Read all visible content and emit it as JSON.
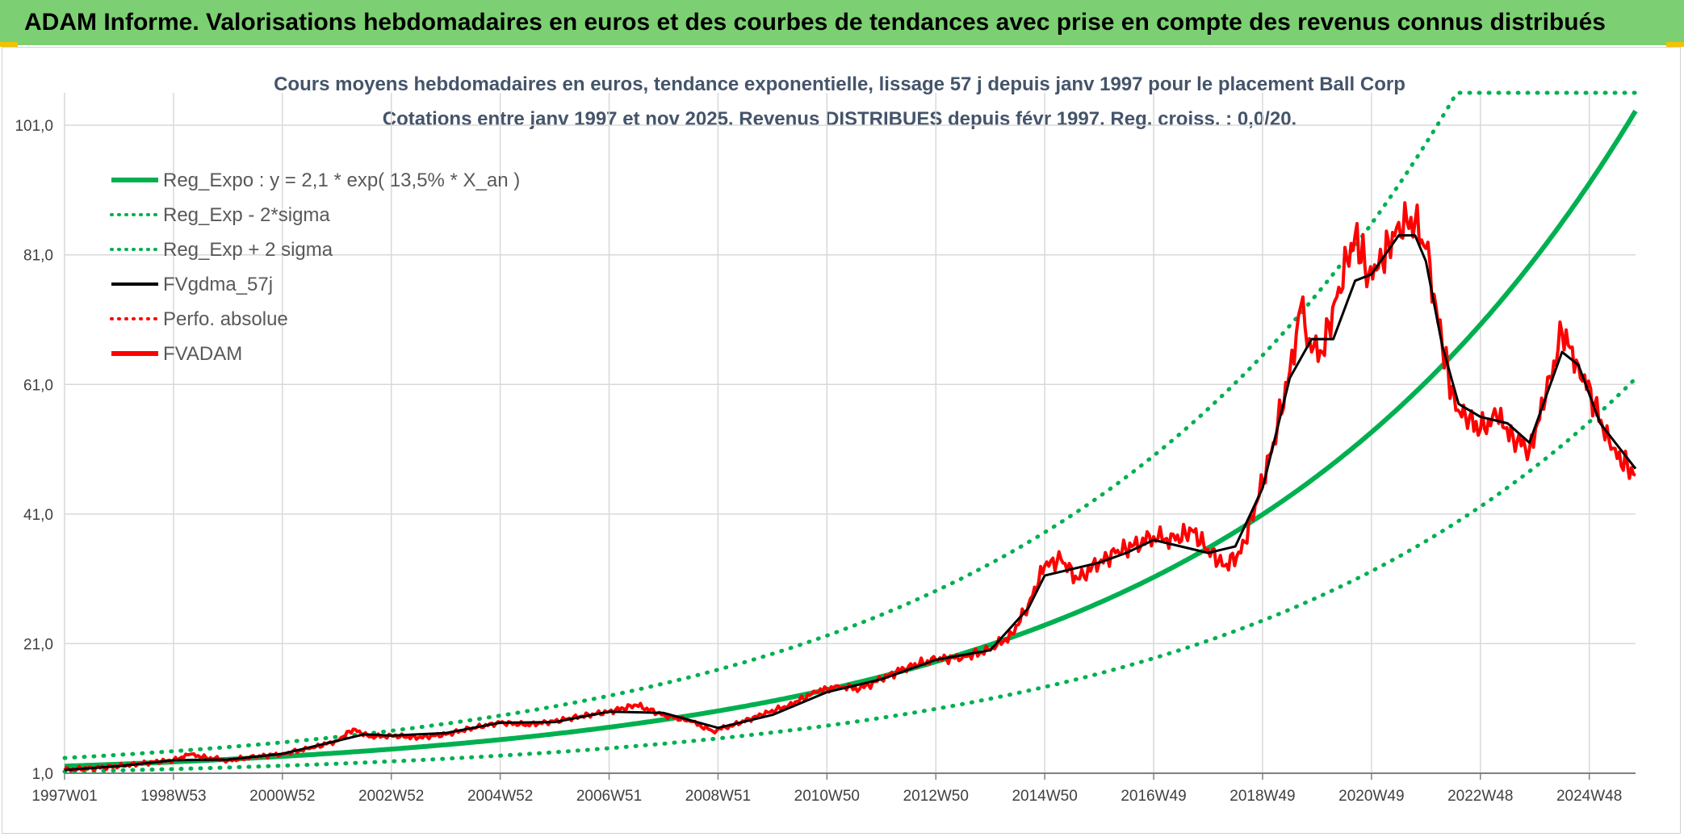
{
  "header": {
    "title": "ADAM Informe. Valorisations hebdomadaires en euros et des courbes de tendances avec prise en compte des revenus connus distribués"
  },
  "colors": {
    "banner": "#7ccf72",
    "trend": "#00b050",
    "fv": "#000000",
    "adam": "#ff0000",
    "perf": "#ff0000",
    "grid": "#d9d9d9"
  },
  "chart_data": {
    "type": "line",
    "title": "Cours moyens hebdomadaires en euros, tendance exponentielle, lissage 57 j depuis janv 1997 pour le placement Ball Corp",
    "subtitle": "Cotations entre janv 1997 et nov 2025. Revenus DISTRIBUES depuis févr 1997. Reg. croiss. : 0,0/20.",
    "xlabel": "",
    "ylabel": "",
    "xlim": [
      1997.0,
      2025.85
    ],
    "ylim": [
      1.0,
      106.0
    ],
    "yticks": [
      "1,0",
      "21,0",
      "41,0",
      "61,0",
      "81,0",
      "101,0"
    ],
    "ytick_values": [
      1,
      21,
      41,
      61,
      81,
      101
    ],
    "xtick_labels": [
      "1997W01",
      "1998W53",
      "2000W52",
      "2002W52",
      "2004W52",
      "2006W51",
      "2008W51",
      "2010W50",
      "2012W50",
      "2014W50",
      "2016W49",
      "2018W49",
      "2020W49",
      "2022W48",
      "2024W48"
    ],
    "xtick_values": [
      1997.0,
      1999.0,
      2001.0,
      2003.0,
      2005.0,
      2007.0,
      2009.0,
      2011.0,
      2013.0,
      2015.0,
      2017.0,
      2019.0,
      2021.0,
      2023.0,
      2025.0
    ],
    "grid": true,
    "legend_position": "top-left",
    "legend": [
      {
        "name": "Reg_Expo : y = 2,1 * exp( 13,5% *  X_an )",
        "style": "solid-thick",
        "color": "#00b050"
      },
      {
        "name": "Reg_Exp - 2*sigma",
        "style": "dotted",
        "color": "#00b050"
      },
      {
        "name": "Reg_Exp + 2 sigma",
        "style": "dotted",
        "color": "#00b050"
      },
      {
        "name": "FVgdma_57j",
        "style": "solid",
        "color": "#000000"
      },
      {
        "name": "Perfo. absolue",
        "style": "dotted",
        "color": "#ff0000"
      },
      {
        "name": "FVADAM",
        "style": "solid-thick",
        "color": "#ff0000"
      }
    ],
    "regression": {
      "a": 2.1,
      "rate": 0.135,
      "minus_2sigma_factor": 0.6,
      "plus_2sigma_factor": 1.6,
      "upper_cap": 106.0
    },
    "series": [
      {
        "name": "FVADAM",
        "x": [
          1997.0,
          1997.5,
          1998.0,
          1998.5,
          1999.0,
          1999.3,
          1999.6,
          2000.0,
          2000.5,
          2001.0,
          2001.5,
          2002.0,
          2002.3,
          2002.6,
          2003.0,
          2003.5,
          2004.0,
          2004.5,
          2005.0,
          2005.5,
          2006.0,
          2006.5,
          2007.0,
          2007.5,
          2008.0,
          2008.5,
          2008.9,
          2009.3,
          2009.8,
          2010.3,
          2010.8,
          2011.2,
          2011.6,
          2012.0,
          2012.5,
          2013.0,
          2013.5,
          2014.0,
          2014.4,
          2014.7,
          2015.0,
          2015.3,
          2015.6,
          2016.0,
          2016.3,
          2016.6,
          2017.0,
          2017.4,
          2017.7,
          2018.0,
          2018.3,
          2018.6,
          2018.9,
          2019.2,
          2019.5,
          2019.7,
          2019.9,
          2020.1,
          2020.4,
          2020.7,
          2020.95,
          2021.2,
          2021.5,
          2021.8,
          2022.0,
          2022.3,
          2022.55,
          2022.8,
          2023.0,
          2023.3,
          2023.6,
          2023.9,
          2024.2,
          2024.5,
          2024.8,
          2025.1,
          2025.4,
          2025.85
        ],
        "values": [
          1.5,
          1.8,
          2.1,
          2.6,
          3.0,
          3.9,
          3.4,
          3.0,
          3.5,
          4.0,
          4.8,
          6.0,
          7.8,
          6.6,
          6.8,
          6.5,
          7.0,
          8.0,
          8.8,
          8.5,
          9.0,
          9.8,
          10.5,
          11.5,
          10.0,
          9.0,
          7.5,
          8.5,
          10.0,
          11.5,
          13.5,
          14.5,
          14.0,
          15.5,
          17.5,
          18.5,
          19.0,
          20.0,
          22.5,
          27.0,
          33.0,
          34.0,
          31.0,
          33.5,
          35.0,
          36.0,
          37.5,
          37.0,
          38.5,
          35.5,
          33.0,
          35.0,
          43.0,
          52.0,
          63.0,
          73.0,
          66.0,
          66.0,
          76.0,
          84.0,
          78.0,
          80.0,
          86.0,
          86.0,
          82.0,
          67.0,
          57.0,
          56.0,
          54.0,
          56.0,
          53.0,
          51.0,
          59.0,
          69.0,
          64.0,
          58.0,
          51.0,
          47.0
        ]
      },
      {
        "name": "FVgdma_57j",
        "x": [
          1997.0,
          1998.0,
          1999.0,
          2000.0,
          2001.0,
          2002.0,
          2002.5,
          2003.0,
          2004.0,
          2005.0,
          2006.0,
          2007.0,
          2008.0,
          2009.0,
          2010.0,
          2011.0,
          2012.0,
          2013.0,
          2014.0,
          2014.7,
          2015.0,
          2015.5,
          2016.0,
          2016.5,
          2017.0,
          2017.5,
          2018.0,
          2018.5,
          2019.0,
          2019.5,
          2019.9,
          2020.3,
          2020.7,
          2021.0,
          2021.5,
          2021.8,
          2022.0,
          2022.3,
          2022.6,
          2023.0,
          2023.5,
          2023.9,
          2024.2,
          2024.5,
          2024.8,
          2025.2,
          2025.85
        ],
        "values": [
          1.5,
          2.1,
          3.0,
          3.1,
          4.0,
          6.0,
          7.0,
          6.8,
          7.2,
          8.8,
          8.9,
          10.5,
          10.3,
          8.0,
          10.0,
          13.5,
          15.5,
          18.5,
          20.0,
          26.5,
          31.5,
          32.5,
          33.5,
          35.0,
          37.0,
          36.0,
          35.0,
          36.0,
          45.0,
          62.0,
          68.0,
          68.0,
          77.0,
          78.0,
          84.0,
          84.0,
          80.0,
          67.0,
          58.0,
          56.0,
          55.0,
          52.0,
          59.0,
          66.0,
          64.0,
          55.0,
          48.0
        ]
      }
    ]
  }
}
